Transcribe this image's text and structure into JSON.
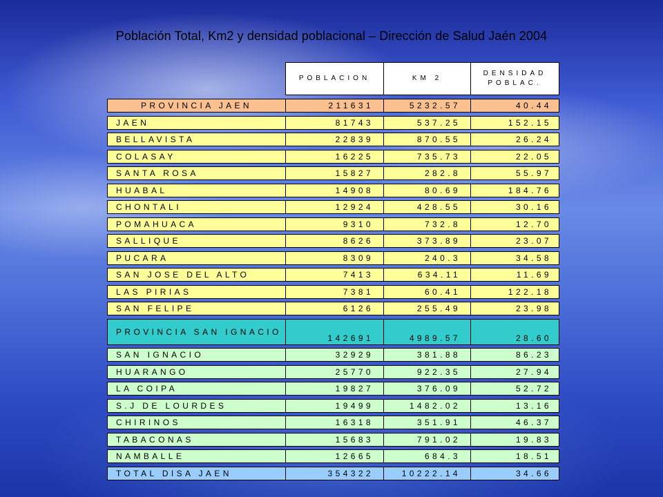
{
  "title": "Población Total, Km2  y densidad poblacional – Dirección de Salud Jaén 2004",
  "headers": {
    "poblacion": "POBLACION",
    "km2": "KM 2",
    "densidad_1": "DENSIDAD",
    "densidad_2": "POBLAC."
  },
  "rows": [
    {
      "name": "PROVINCIA JAEN",
      "poblacion": "211631",
      "km2": "5232.57",
      "densidad": "40.44"
    },
    {
      "name": "JAEN",
      "poblacion": "81743",
      "km2": "537.25",
      "densidad": "152.15"
    },
    {
      "name": "BELLAVISTA",
      "poblacion": "22839",
      "km2": "870.55",
      "densidad": "26.24"
    },
    {
      "name": "COLASAY",
      "poblacion": "16225",
      "km2": "735.73",
      "densidad": "22.05"
    },
    {
      "name": "SANTA ROSA",
      "poblacion": "15827",
      "km2": "282.8",
      "densidad": "55.97"
    },
    {
      "name": "HUABAL",
      "poblacion": "14908",
      "km2": "80.69",
      "densidad": "184.76"
    },
    {
      "name": "CHONTALI",
      "poblacion": "12924",
      "km2": "428.55",
      "densidad": "30.16"
    },
    {
      "name": "POMAHUACA",
      "poblacion": "9310",
      "km2": "732.8",
      "densidad": "12.70"
    },
    {
      "name": "SALLIQUE",
      "poblacion": "8626",
      "km2": "373.89",
      "densidad": "23.07"
    },
    {
      "name": "PUCARA",
      "poblacion": "8309",
      "km2": "240.3",
      "densidad": "34.58"
    },
    {
      "name": "SAN JOSE DEL ALTO",
      "poblacion": "7413",
      "km2": "634.11",
      "densidad": "11.69"
    },
    {
      "name": "LAS PIRIAS",
      "poblacion": "7381",
      "km2": "60.41",
      "densidad": "122.18"
    },
    {
      "name": "SAN FELIPE",
      "poblacion": "6126",
      "km2": "255.49",
      "densidad": "23.98"
    },
    {
      "name": "PROVINCIA SAN IGNACIO",
      "poblacion": "142691",
      "km2": "4989.57",
      "densidad": "28.60"
    },
    {
      "name": "SAN IGNACIO",
      "poblacion": "32929",
      "km2": "381.88",
      "densidad": "86.23"
    },
    {
      "name": "HUARANGO",
      "poblacion": "25770",
      "km2": "922.35",
      "densidad": "27.94"
    },
    {
      "name": "LA COIPA",
      "poblacion": "19827",
      "km2": "376.09",
      "densidad": "52.72"
    },
    {
      "name": "S.J DE LOURDES",
      "poblacion": "19499",
      "km2": "1482.02",
      "densidad": "13.16"
    },
    {
      "name": "CHIRINOS",
      "poblacion": "16318",
      "km2": "351.91",
      "densidad": "46.37"
    },
    {
      "name": "TABACONAS",
      "poblacion": "15683",
      "km2": "791.02",
      "densidad": "19.83"
    },
    {
      "name": "NAMBALLE",
      "poblacion": "12665",
      "km2": "684.3",
      "densidad": "18.51"
    },
    {
      "name": "TOTAL DISA JAEN",
      "poblacion": "354322",
      "km2": "10222.14",
      "densidad": "34.66"
    }
  ],
  "colors": {
    "provincia_jaen": "#fac090",
    "jaen_districts": "#ffff99",
    "provincia_san_ignacio": "#33cccc",
    "san_ignacio_districts": "#ccffcc",
    "total": "#99ccff"
  }
}
